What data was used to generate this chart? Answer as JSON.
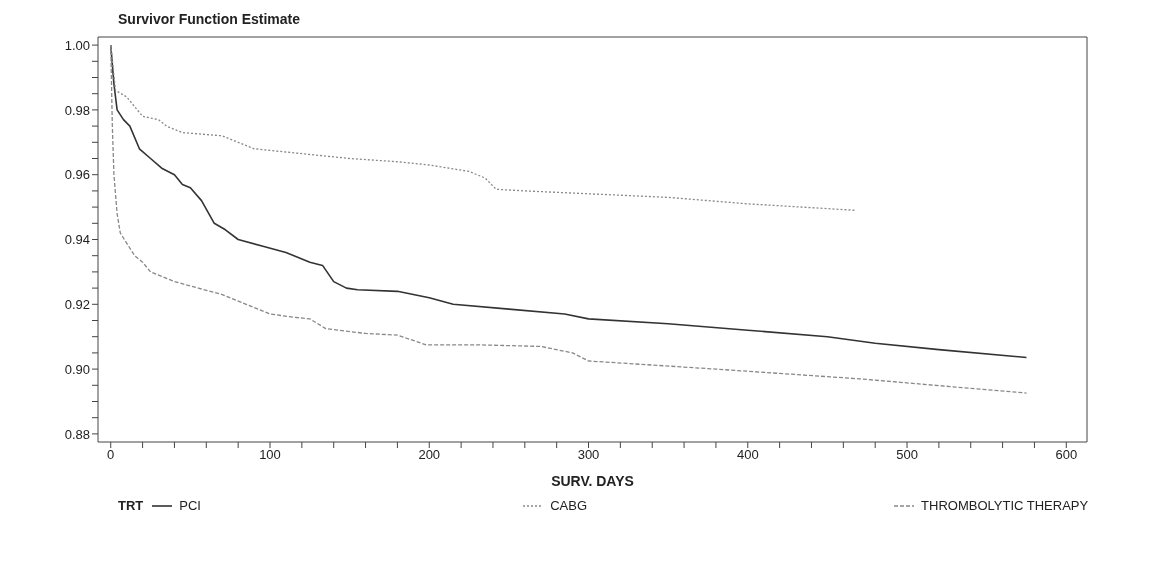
{
  "chart_data": {
    "type": "line",
    "title": "Survivor Function Estimate",
    "xlabel": "SURV. DAYS",
    "legend_title": "TRT",
    "legend": "bottom",
    "marker": "none",
    "xlim": [
      -8,
      613
    ],
    "ylim": [
      0.8775,
      1.0025
    ],
    "xticks": [
      0,
      {
        "value": 20,
        "label": null
      },
      {
        "value": 40,
        "label": null
      },
      {
        "value": 60,
        "label": null
      },
      {
        "value": 80,
        "label": null
      },
      100,
      {
        "value": 120,
        "label": null
      },
      {
        "value": 140,
        "label": null
      },
      {
        "value": 160,
        "label": null
      },
      {
        "value": 180,
        "label": null
      },
      200,
      {
        "value": 220,
        "label": null
      },
      {
        "value": 240,
        "label": null
      },
      {
        "value": 260,
        "label": null
      },
      {
        "value": 280,
        "label": null
      },
      300,
      {
        "value": 320,
        "label": null
      },
      {
        "value": 340,
        "label": null
      },
      {
        "value": 360,
        "label": null
      },
      {
        "value": 380,
        "label": null
      },
      400,
      {
        "value": 420,
        "label": null
      },
      {
        "value": 440,
        "label": null
      },
      {
        "value": 460,
        "label": null
      },
      {
        "value": 480,
        "label": null
      },
      500,
      {
        "value": 520,
        "label": null
      },
      {
        "value": 540,
        "label": null
      },
      {
        "value": 560,
        "label": null
      },
      {
        "value": 580,
        "label": null
      },
      600
    ],
    "yticks": [
      {
        "value": 0.88,
        "label": "0.88"
      },
      {
        "value": 0.885,
        "label": null
      },
      {
        "value": 0.89,
        "label": null
      },
      {
        "value": 0.895,
        "label": null
      },
      {
        "value": 0.9,
        "label": "0.90"
      },
      {
        "value": 0.905,
        "label": null
      },
      {
        "value": 0.91,
        "label": null
      },
      {
        "value": 0.915,
        "label": null
      },
      {
        "value": 0.92,
        "label": "0.92"
      },
      {
        "value": 0.925,
        "label": null
      },
      {
        "value": 0.93,
        "label": null
      },
      {
        "value": 0.935,
        "label": null
      },
      {
        "value": 0.94,
        "label": "0.94"
      },
      {
        "value": 0.945,
        "label": null
      },
      {
        "value": 0.95,
        "label": null
      },
      {
        "value": 0.955,
        "label": null
      },
      {
        "value": 0.96,
        "label": "0.96"
      },
      {
        "value": 0.965,
        "label": null
      },
      {
        "value": 0.97,
        "label": null
      },
      {
        "value": 0.975,
        "label": null
      },
      {
        "value": 0.98,
        "label": "0.98"
      },
      {
        "value": 0.985,
        "label": null
      },
      {
        "value": 0.99,
        "label": null
      },
      {
        "value": 0.995,
        "label": null
      },
      {
        "value": 1,
        "label": "1.00"
      }
    ],
    "series": [
      {
        "name": "PCI",
        "color": "#333333",
        "line_style": "solid",
        "x": [
          0,
          2,
          4,
          8,
          12,
          18,
          25,
          32,
          40,
          45,
          50,
          57,
          65,
          72,
          80,
          95,
          110,
          125,
          133,
          140,
          148,
          155,
          180,
          200,
          215,
          250,
          285,
          300,
          350,
          400,
          450,
          480,
          520,
          575
        ],
        "values": [
          1,
          0.988,
          0.98,
          0.977,
          0.975,
          0.968,
          0.965,
          0.962,
          0.96,
          0.957,
          0.956,
          0.952,
          0.945,
          0.943,
          0.94,
          0.938,
          0.936,
          0.933,
          0.932,
          0.927,
          0.925,
          0.9245,
          0.924,
          0.922,
          0.92,
          0.9185,
          0.917,
          0.9155,
          0.914,
          0.912,
          0.91,
          0.908,
          0.906,
          0.9036
        ]
      },
      {
        "name": "CABG",
        "color": "#888888",
        "line_style": "dotted",
        "x": [
          0,
          3,
          10,
          20,
          30,
          35,
          45,
          70,
          80,
          90,
          110,
          150,
          180,
          200,
          225,
          235,
          242,
          260,
          350,
          400,
          468
        ],
        "values": [
          1,
          0.986,
          0.984,
          0.978,
          0.977,
          0.975,
          0.973,
          0.972,
          0.97,
          0.968,
          0.967,
          0.965,
          0.964,
          0.963,
          0.961,
          0.959,
          0.9555,
          0.955,
          0.953,
          0.951,
          0.949
        ]
      },
      {
        "name": "THROMBOLYTIC THERAPY",
        "color": "#888888",
        "line_style": "dashed",
        "x": [
          0,
          1,
          2,
          4,
          6,
          15,
          20,
          25,
          40,
          55,
          70,
          85,
          100,
          115,
          125,
          135,
          160,
          180,
          198,
          230,
          270,
          290,
          300,
          380,
          470,
          575
        ],
        "values": [
          1,
          0.975,
          0.96,
          0.948,
          0.942,
          0.935,
          0.933,
          0.93,
          0.927,
          0.925,
          0.923,
          0.92,
          0.917,
          0.916,
          0.9155,
          0.9125,
          0.911,
          0.9105,
          0.9075,
          0.9075,
          0.907,
          0.905,
          0.9025,
          0.9,
          0.897,
          0.8926
        ]
      }
    ]
  }
}
